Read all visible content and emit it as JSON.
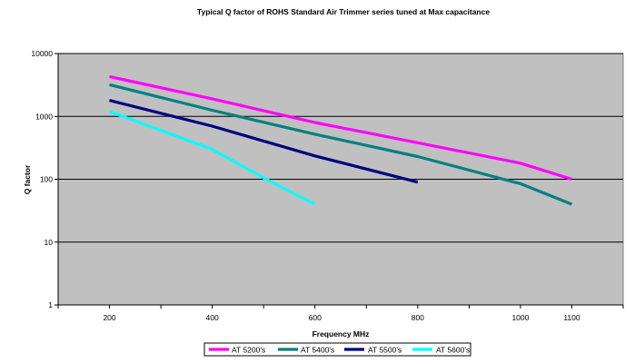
{
  "chart_data": {
    "type": "line",
    "title": "Typical Q factor of ROHS Standard Air Trimmer series tuned at Max capacitance",
    "xlabel": "Frequency MHz",
    "ylabel": "Q factor",
    "xlim": [
      100,
      1200
    ],
    "ylim": [
      1,
      10000
    ],
    "y_scale": "log",
    "x_ticks": [
      200,
      400,
      600,
      800,
      1000,
      1100
    ],
    "y_ticks": [
      1,
      10,
      100,
      1000,
      10000
    ],
    "grid": "horizontal",
    "plot_background": "#c0c0c0",
    "legend_position": "bottom",
    "series": [
      {
        "name": "AT 5200's",
        "color": "#ff00ff",
        "x": [
          200,
          400,
          600,
          800,
          1000,
          1100
        ],
        "y": [
          4300,
          1900,
          800,
          380,
          180,
          100
        ]
      },
      {
        "name": "AT 5400's",
        "color": "#008080",
        "x": [
          200,
          400,
          600,
          800,
          1000,
          1100
        ],
        "y": [
          3200,
          1250,
          520,
          230,
          85,
          40
        ]
      },
      {
        "name": "AT 5500's",
        "color": "#000080",
        "x": [
          200,
          400,
          600,
          800
        ],
        "y": [
          1800,
          700,
          235,
          90
        ]
      },
      {
        "name": "AT 5600's",
        "color": "#00ffff",
        "x": [
          200,
          400,
          500,
          600
        ],
        "y": [
          1200,
          300,
          105,
          40
        ]
      }
    ]
  }
}
